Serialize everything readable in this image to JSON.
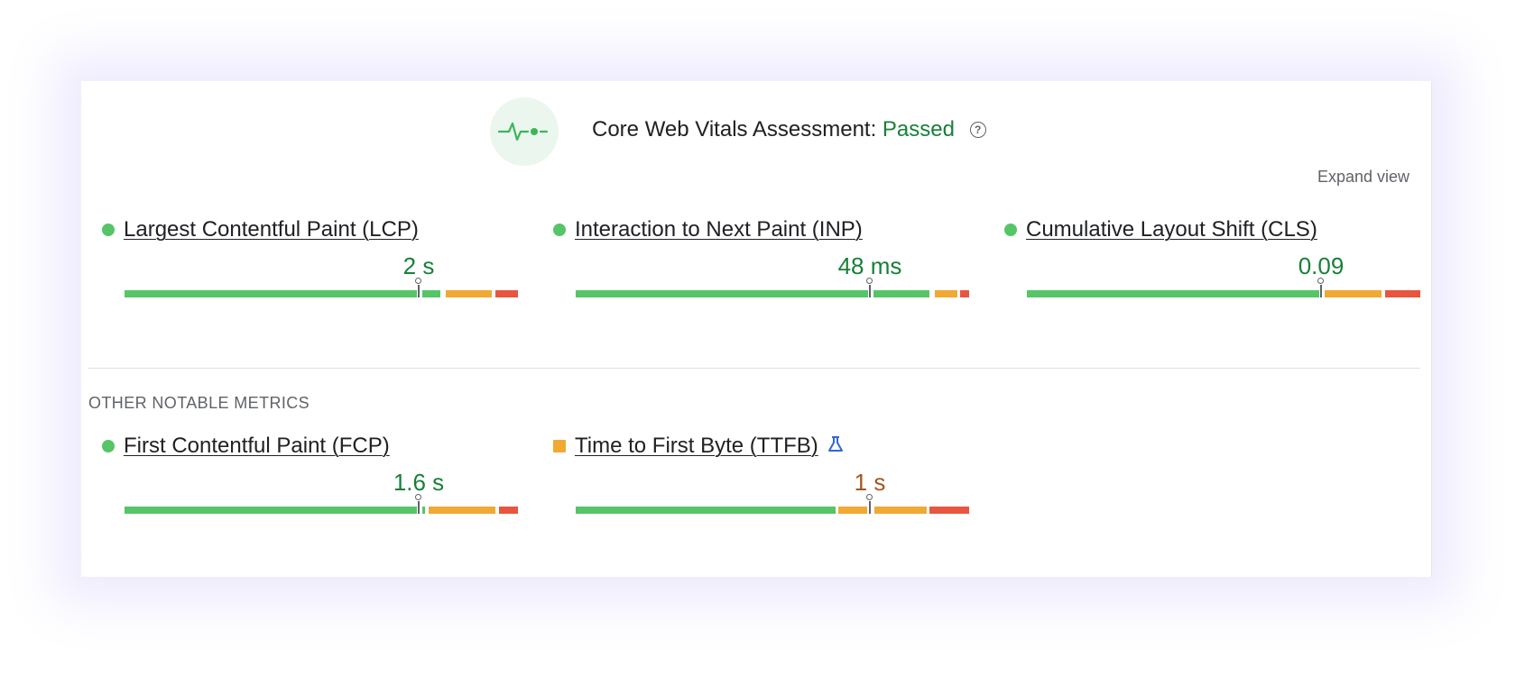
{
  "header": {
    "title": "Core Web Vitals Assessment:",
    "status": "Passed",
    "status_color": "#188038",
    "logo_icon": "pulse-icon",
    "help_icon": "question-icon"
  },
  "expand_view_label": "Expand view",
  "core_metrics": [
    {
      "name": "Largest Contentful Paint (LCP)",
      "value": "2 s",
      "rating": "good",
      "marker_fraction": 0.745
    },
    {
      "name": "Interaction to Next Paint (INP)",
      "value": "48 ms",
      "rating": "good",
      "marker_fraction": 0.745
    },
    {
      "name": "Cumulative Layout Shift (CLS)",
      "value": "0.09",
      "rating": "good",
      "marker_fraction": 0.745
    }
  ],
  "other_section_label": "OTHER NOTABLE METRICS",
  "other_metrics": [
    {
      "name": "First Contentful Paint (FCP)",
      "value": "1.6 s",
      "rating": "good",
      "marker_fraction": 0.745
    },
    {
      "name": "Time to First Byte (TTFB)",
      "value": "1 s",
      "rating": "average",
      "marker_fraction": 0.745,
      "badge_icon": "lab-flask-icon"
    }
  ],
  "colors": {
    "good": "#55c567",
    "average": "#f0a933",
    "poor": "#e8563f"
  }
}
